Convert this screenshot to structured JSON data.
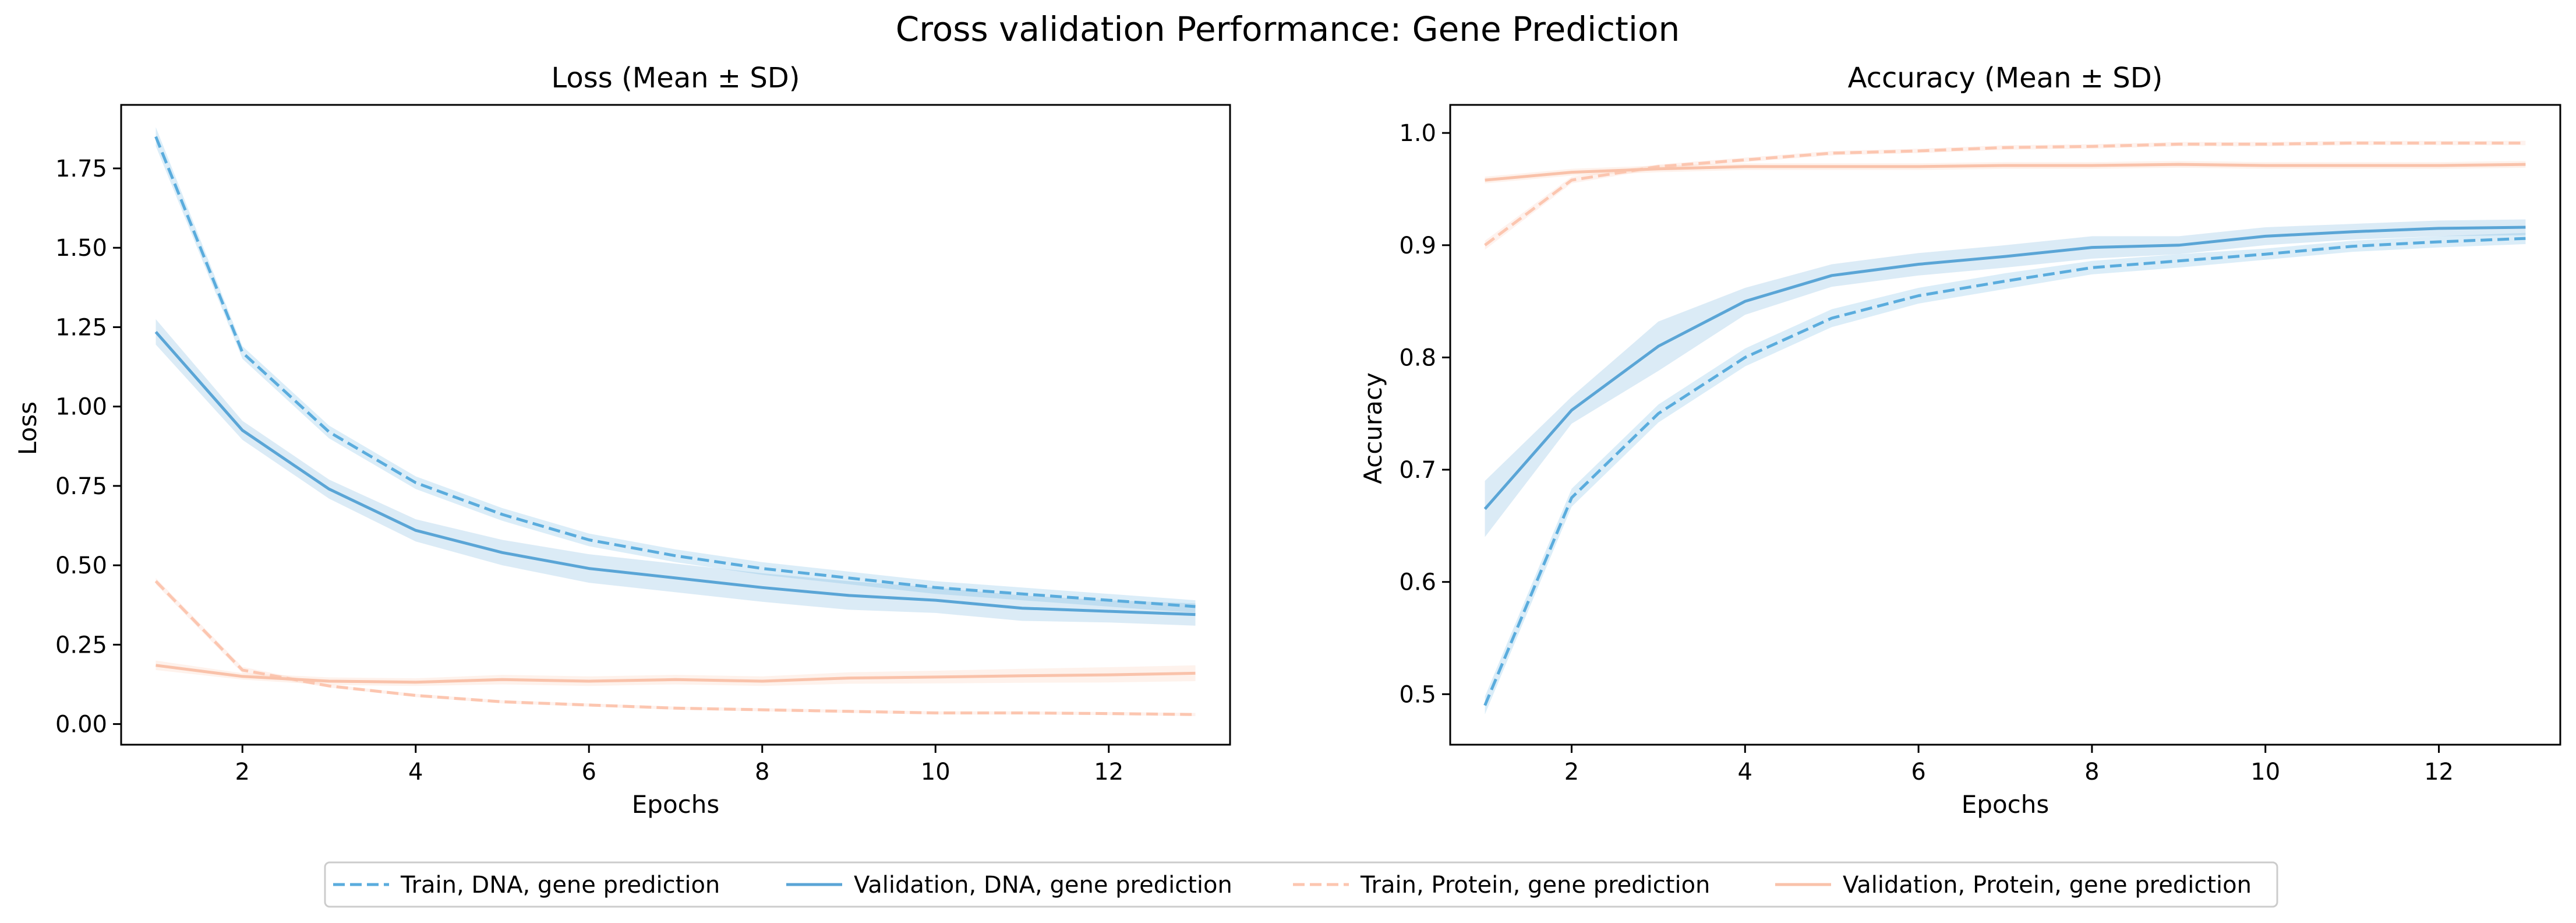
{
  "figure": {
    "title": "Cross validation Performance: Gene Prediction"
  },
  "chart_data": [
    {
      "type": "line",
      "title": "Loss (Mean ± SD)",
      "xlabel": "Epochs",
      "ylabel": "Loss",
      "xlim": [
        0.6,
        13.4
      ],
      "ylim": [
        -0.065,
        1.95
      ],
      "xticks": [
        2,
        4,
        6,
        8,
        10,
        12
      ],
      "yticks": [
        0.0,
        0.25,
        0.5,
        0.75,
        1.0,
        1.25,
        1.5,
        1.75
      ],
      "ytick_labels": [
        "0.00",
        "0.25",
        "0.50",
        "0.75",
        "1.00",
        "1.25",
        "1.50",
        "1.75"
      ],
      "x": [
        1,
        2,
        3,
        4,
        5,
        6,
        7,
        8,
        9,
        10,
        11,
        12,
        13
      ],
      "series": [
        {
          "name": "Train, DNA, gene prediction",
          "color": "#5aacdd",
          "dash": true,
          "values": [
            1.85,
            1.17,
            0.92,
            0.76,
            0.66,
            0.58,
            0.53,
            0.49,
            0.46,
            0.43,
            0.41,
            0.39,
            0.37
          ],
          "sd": [
            0.03,
            0.02,
            0.02,
            0.02,
            0.02,
            0.02,
            0.02,
            0.02,
            0.02,
            0.02,
            0.02,
            0.02,
            0.02
          ]
        },
        {
          "name": "Validation, DNA, gene prediction",
          "color": "#5aa5d6",
          "dash": false,
          "values": [
            1.235,
            0.925,
            0.74,
            0.61,
            0.54,
            0.49,
            0.46,
            0.43,
            0.405,
            0.39,
            0.365,
            0.355,
            0.345
          ],
          "sd": [
            0.04,
            0.03,
            0.03,
            0.035,
            0.04,
            0.045,
            0.045,
            0.045,
            0.045,
            0.04,
            0.04,
            0.035,
            0.035
          ]
        },
        {
          "name": "Train, Protein, gene prediction",
          "color": "#fcc6b0",
          "dash": true,
          "values": [
            0.45,
            0.17,
            0.12,
            0.09,
            0.07,
            0.06,
            0.05,
            0.045,
            0.04,
            0.035,
            0.035,
            0.033,
            0.03
          ],
          "sd": [
            0.01,
            0.01,
            0.005,
            0.005,
            0.005,
            0.005,
            0.005,
            0.005,
            0.005,
            0.005,
            0.005,
            0.005,
            0.005
          ]
        },
        {
          "name": "Validation, Protein, gene prediction",
          "color": "#f9c2aa",
          "dash": false,
          "values": [
            0.185,
            0.15,
            0.135,
            0.132,
            0.14,
            0.135,
            0.14,
            0.135,
            0.145,
            0.148,
            0.152,
            0.155,
            0.16
          ],
          "sd": [
            0.015,
            0.01,
            0.012,
            0.012,
            0.015,
            0.015,
            0.015,
            0.015,
            0.018,
            0.02,
            0.022,
            0.024,
            0.025
          ]
        }
      ]
    },
    {
      "type": "line",
      "title": "Accuracy (Mean ± SD)",
      "xlabel": "Epochs",
      "ylabel": "Accuracy",
      "xlim": [
        0.6,
        13.4
      ],
      "ylim": [
        0.455,
        1.025
      ],
      "xticks": [
        2,
        4,
        6,
        8,
        10,
        12
      ],
      "yticks": [
        0.5,
        0.6,
        0.7,
        0.8,
        0.9,
        1.0
      ],
      "ytick_labels": [
        "0.5",
        "0.6",
        "0.7",
        "0.8",
        "0.9",
        "1.0"
      ],
      "x": [
        1,
        2,
        3,
        4,
        5,
        6,
        7,
        8,
        9,
        10,
        11,
        12,
        13
      ],
      "series": [
        {
          "name": "Train, DNA, gene prediction",
          "color": "#5aacdd",
          "dash": true,
          "values": [
            0.49,
            0.675,
            0.75,
            0.8,
            0.835,
            0.855,
            0.868,
            0.88,
            0.886,
            0.892,
            0.899,
            0.903,
            0.906
          ],
          "sd": [
            0.008,
            0.008,
            0.008,
            0.008,
            0.008,
            0.007,
            0.007,
            0.006,
            0.006,
            0.005,
            0.005,
            0.005,
            0.005
          ]
        },
        {
          "name": "Validation, DNA, gene prediction",
          "color": "#5aa5d6",
          "dash": false,
          "values": [
            0.665,
            0.753,
            0.81,
            0.85,
            0.873,
            0.883,
            0.89,
            0.898,
            0.9,
            0.908,
            0.912,
            0.915,
            0.916
          ],
          "sd": [
            0.025,
            0.012,
            0.022,
            0.012,
            0.01,
            0.01,
            0.01,
            0.01,
            0.008,
            0.008,
            0.007,
            0.007,
            0.007
          ]
        },
        {
          "name": "Train, Protein, gene prediction",
          "color": "#fcc6b0",
          "dash": true,
          "values": [
            0.9,
            0.958,
            0.97,
            0.976,
            0.982,
            0.984,
            0.987,
            0.988,
            0.99,
            0.99,
            0.991,
            0.991,
            0.991
          ],
          "sd": [
            0.004,
            0.003,
            0.002,
            0.002,
            0.002,
            0.002,
            0.002,
            0.002,
            0.002,
            0.002,
            0.002,
            0.002,
            0.002
          ]
        },
        {
          "name": "Validation, Protein, gene prediction",
          "color": "#f9c2aa",
          "dash": false,
          "values": [
            0.958,
            0.965,
            0.968,
            0.97,
            0.97,
            0.97,
            0.971,
            0.971,
            0.972,
            0.971,
            0.971,
            0.971,
            0.972
          ],
          "sd": [
            0.003,
            0.003,
            0.003,
            0.003,
            0.003,
            0.003,
            0.003,
            0.003,
            0.003,
            0.003,
            0.003,
            0.003,
            0.003
          ]
        }
      ]
    }
  ],
  "legend": {
    "placement": "bottom-center",
    "items": [
      {
        "label": "Train, DNA, gene prediction",
        "color": "#5aacdd",
        "dash": true
      },
      {
        "label": "Validation, DNA, gene prediction",
        "color": "#5aa5d6",
        "dash": false
      },
      {
        "label": "Train, Protein, gene prediction",
        "color": "#fcc6b0",
        "dash": true
      },
      {
        "label": "Validation, Protein, gene prediction",
        "color": "#f9c2aa",
        "dash": false
      }
    ]
  }
}
